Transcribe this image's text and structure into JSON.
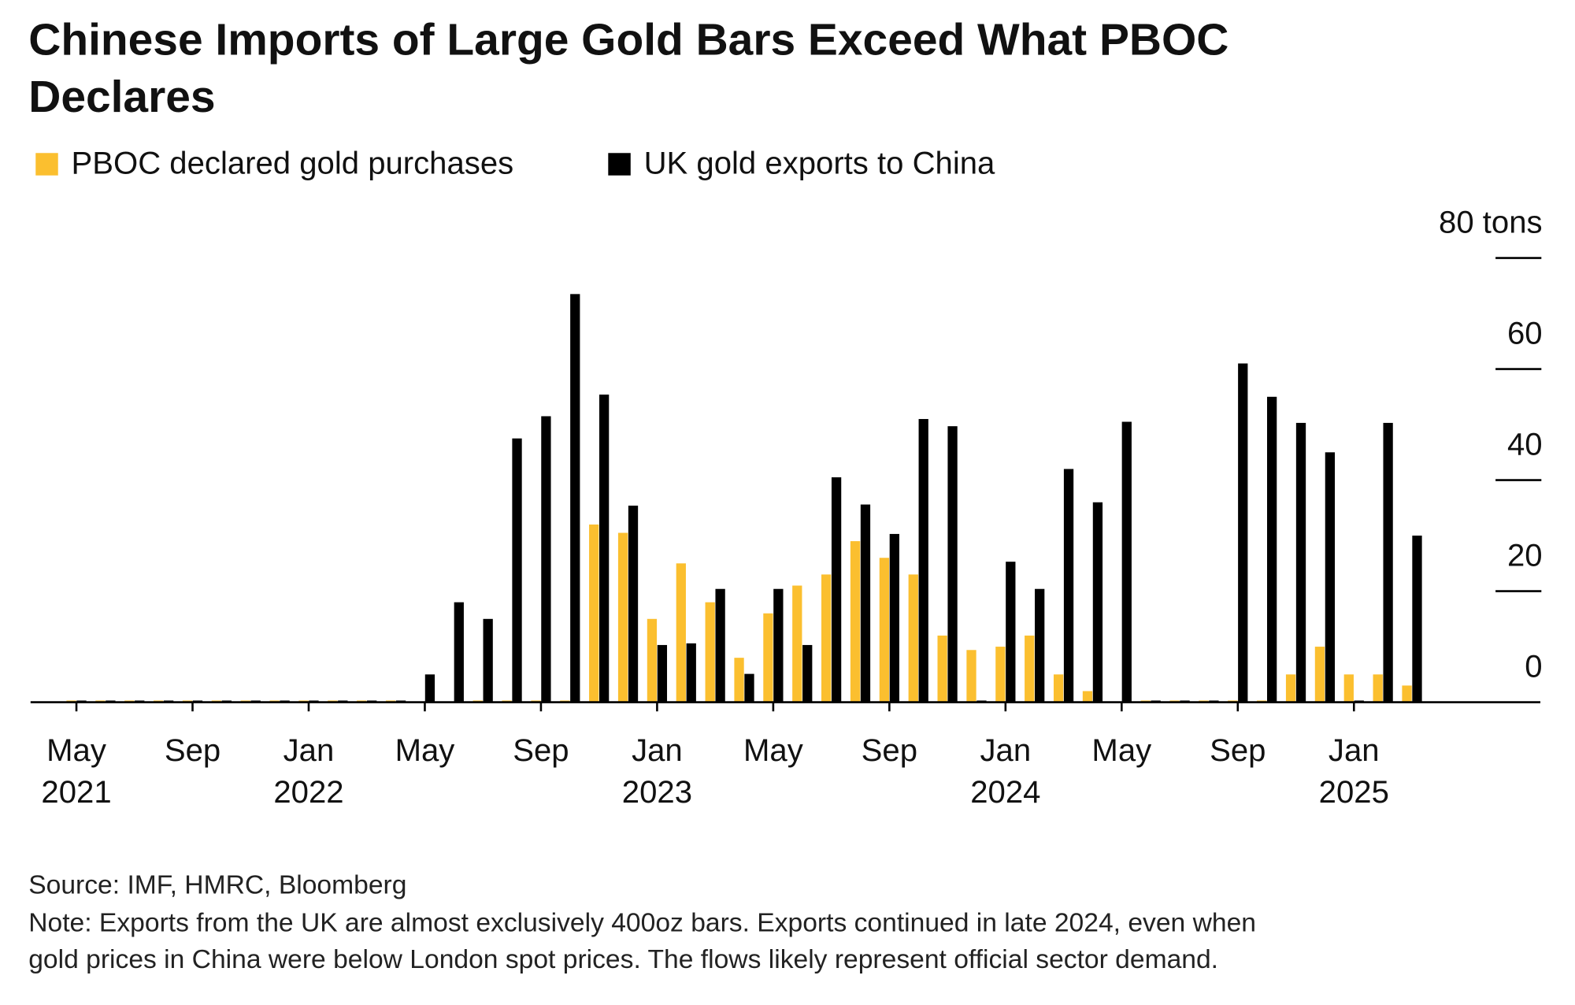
{
  "chart_data": {
    "type": "bar",
    "title_lines": [
      "Chinese Imports of Large Gold Bars Exceed What PBOC",
      "Declares"
    ],
    "categories": [
      "May 2021",
      null,
      null,
      null,
      "Sep",
      null,
      null,
      null,
      "Jan 2022",
      null,
      null,
      null,
      "May",
      null,
      null,
      null,
      "Sep",
      null,
      null,
      null,
      "Jan 2023",
      null,
      null,
      null,
      "May",
      null,
      null,
      null,
      "Sep",
      null,
      null,
      null,
      "Jan 2024",
      null,
      null,
      null,
      "May",
      null,
      null,
      null,
      "Sep",
      null,
      null,
      null,
      "Jan 2025",
      null,
      null
    ],
    "series": [
      {
        "name": "PBOC declared gold purchases",
        "color": "#fbbf2f",
        "values": [
          0.3,
          0.3,
          0.3,
          0.3,
          0.3,
          0.3,
          0.3,
          0.3,
          0.3,
          0.3,
          0.3,
          0.3,
          0,
          0,
          0.3,
          0.3,
          0.3,
          0.3,
          32,
          30.5,
          15,
          25,
          18,
          8,
          16,
          21,
          23,
          29,
          26,
          23,
          12,
          9.4,
          10,
          12,
          5,
          2,
          0,
          0.3,
          0.3,
          0.3,
          0.3,
          0.3,
          5,
          10,
          5,
          5,
          3
        ]
      },
      {
        "name": "UK gold exports to China",
        "color": "#000000",
        "values": [
          0.3,
          0.3,
          0.3,
          0.3,
          0.3,
          0.3,
          0.3,
          0.3,
          0.3,
          0.3,
          0.3,
          0.3,
          5,
          18,
          15,
          47.5,
          51.5,
          73.5,
          55.4,
          35.4,
          10.3,
          10.6,
          20.4,
          5.1,
          20.4,
          10.3,
          40.5,
          35.6,
          30.3,
          51,
          49.7,
          0.3,
          25.3,
          20.4,
          42,
          36,
          50.5,
          0.3,
          0.3,
          0.3,
          61,
          55,
          50.3,
          45,
          0.3,
          50.3,
          30
        ]
      }
    ],
    "ylim": [
      0,
      80
    ],
    "yticks": [
      0,
      20,
      40,
      60,
      {
        "value": 80,
        "label": "80 tons"
      }
    ],
    "grid": true,
    "source": "Source: IMF, HMRC, Bloomberg",
    "note_lines": [
      "Note: Exports from the UK are almost exclusively 400oz bars. Exports continued in late 2024, even when",
      "gold prices in China were below London spot prices. The flows likely represent official sector demand."
    ]
  }
}
